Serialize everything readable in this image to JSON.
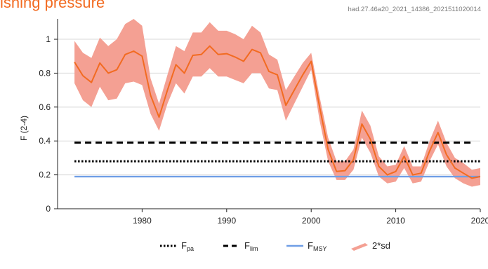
{
  "header": {
    "title": "ishing pressure",
    "code": "had.27.46a20_2021_14386_2021511020014"
  },
  "colors": {
    "estimate": "#f26b21",
    "band": "#f4a093",
    "fmsy": "#6f9ee6",
    "reference": "#000000",
    "grid": "#d9d9d9"
  },
  "chart_data": {
    "type": "line",
    "ylabel": "F (2-4)",
    "xlim": [
      1970,
      2020
    ],
    "ylim": [
      0,
      1.12
    ],
    "x_ticks": [
      1980,
      1990,
      2000,
      2010,
      2020
    ],
    "y_ticks": [
      0,
      0.2,
      0.4,
      0.6,
      0.8,
      1
    ],
    "grid": "horizontal",
    "legend_position": "bottom",
    "legend": [
      {
        "key": "fpa",
        "label": "F",
        "sub": "pa",
        "style": "dotted"
      },
      {
        "key": "flim",
        "label": "F",
        "sub": "lim",
        "style": "dashed"
      },
      {
        "key": "fmsy",
        "label": "F",
        "sub": "MSY",
        "style": "solid"
      },
      {
        "key": "band",
        "label": "2*sd",
        "style": "band"
      }
    ],
    "x": [
      1972,
      1973,
      1974,
      1975,
      1976,
      1977,
      1978,
      1979,
      1980,
      1981,
      1982,
      1983,
      1984,
      1985,
      1986,
      1987,
      1988,
      1989,
      1990,
      1991,
      1992,
      1993,
      1994,
      1995,
      1996,
      1997,
      1998,
      1999,
      2000,
      2001,
      2002,
      2003,
      2004,
      2005,
      2006,
      2007,
      2008,
      2009,
      2010,
      2011,
      2012,
      2013,
      2014,
      2015,
      2016,
      2017,
      2018,
      2019,
      2020
    ],
    "series": [
      {
        "key": "F",
        "values": [
          0.865,
          0.785,
          0.745,
          0.86,
          0.8,
          0.82,
          0.91,
          0.93,
          0.9,
          0.67,
          0.54,
          0.7,
          0.85,
          0.8,
          0.905,
          0.91,
          0.96,
          0.91,
          0.915,
          0.895,
          0.87,
          0.94,
          0.92,
          0.81,
          0.79,
          0.61,
          0.7,
          0.79,
          0.87,
          0.6,
          0.35,
          0.22,
          0.225,
          0.29,
          0.5,
          0.41,
          0.25,
          0.2,
          0.22,
          0.31,
          0.2,
          0.21,
          0.34,
          0.45,
          0.32,
          0.24,
          0.21,
          0.18,
          0.19
        ]
      },
      {
        "key": "upper",
        "values": [
          0.99,
          0.92,
          0.89,
          1.01,
          0.96,
          1.0,
          1.09,
          1.12,
          1.08,
          0.77,
          0.62,
          0.79,
          0.96,
          0.93,
          1.04,
          1.04,
          1.1,
          1.05,
          1.05,
          1.03,
          1.0,
          1.08,
          1.04,
          0.91,
          0.88,
          0.7,
          0.78,
          0.86,
          0.92,
          0.66,
          0.42,
          0.28,
          0.28,
          0.35,
          0.58,
          0.49,
          0.31,
          0.25,
          0.26,
          0.37,
          0.25,
          0.25,
          0.4,
          0.52,
          0.39,
          0.3,
          0.27,
          0.23,
          0.24
        ]
      },
      {
        "key": "lower",
        "values": [
          0.74,
          0.64,
          0.6,
          0.72,
          0.64,
          0.65,
          0.74,
          0.75,
          0.73,
          0.56,
          0.46,
          0.62,
          0.74,
          0.68,
          0.78,
          0.78,
          0.83,
          0.78,
          0.78,
          0.76,
          0.74,
          0.8,
          0.8,
          0.71,
          0.7,
          0.52,
          0.62,
          0.72,
          0.82,
          0.52,
          0.28,
          0.17,
          0.17,
          0.23,
          0.42,
          0.33,
          0.19,
          0.15,
          0.16,
          0.24,
          0.15,
          0.16,
          0.28,
          0.38,
          0.25,
          0.18,
          0.15,
          0.13,
          0.14
        ]
      }
    ],
    "reference_lines": [
      {
        "key": "flim",
        "value": 0.39,
        "x_from": 1972,
        "x_to": 2019
      },
      {
        "key": "fpa",
        "value": 0.28,
        "x_from": 1972,
        "x_to": 2020
      },
      {
        "key": "fmsy",
        "value": 0.19,
        "x_from": 1972,
        "x_to": 2020
      }
    ]
  }
}
